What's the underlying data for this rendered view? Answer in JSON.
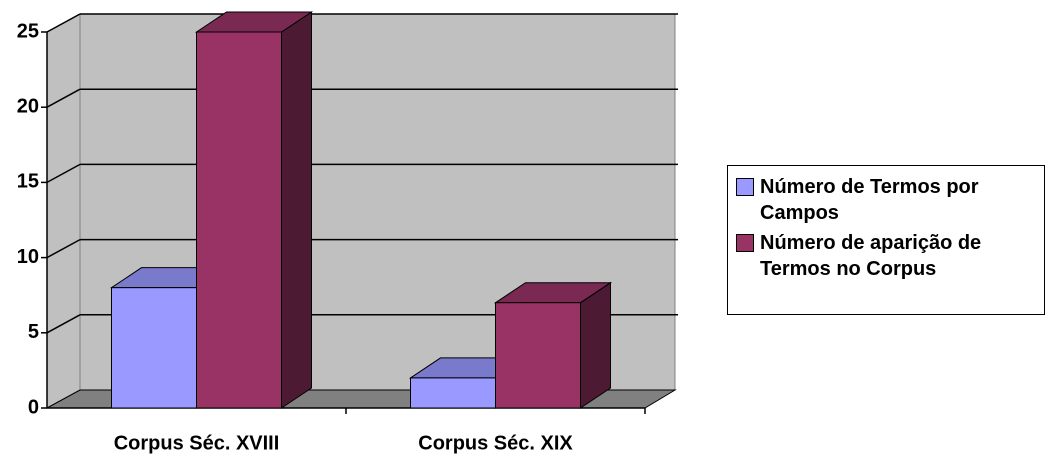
{
  "chart_data": {
    "type": "bar3d",
    "categories": [
      "Corpus Séc. XVIII",
      "Corpus Séc. XIX"
    ],
    "series": [
      {
        "name": "Número de Termos por Campos",
        "color": "#9999ff",
        "values": [
          8,
          2
        ]
      },
      {
        "name": "Número de aparição de Termos no Corpus",
        "color": "#993366",
        "values": [
          25,
          7
        ]
      }
    ],
    "ylim": [
      0,
      25
    ],
    "yticks": [
      0,
      5,
      10,
      15,
      20,
      25
    ],
    "grid": true,
    "legend": "right"
  }
}
